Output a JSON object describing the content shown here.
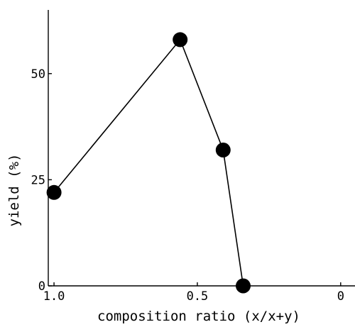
{
  "chart_data": {
    "type": "line",
    "title": "",
    "xlabel": "composition ratio (x/x+y)",
    "ylabel": "yield (%)",
    "x_reversed": true,
    "xlim": [
      1.02,
      -0.05
    ],
    "ylim": [
      0,
      65
    ],
    "xticks": [
      {
        "value": 1.0,
        "label": "1.0"
      },
      {
        "value": 0.5,
        "label": "0.5"
      },
      {
        "value": 0,
        "label": "0"
      }
    ],
    "yticks": [
      {
        "value": 0,
        "label": "0"
      },
      {
        "value": 25,
        "label": "25"
      },
      {
        "value": 50,
        "label": "50"
      }
    ],
    "grid": false,
    "legend": false,
    "series": [
      {
        "x": [
          1.0,
          0.56,
          0.41,
          0.34
        ],
        "y": [
          22,
          58,
          32,
          0
        ]
      }
    ]
  }
}
